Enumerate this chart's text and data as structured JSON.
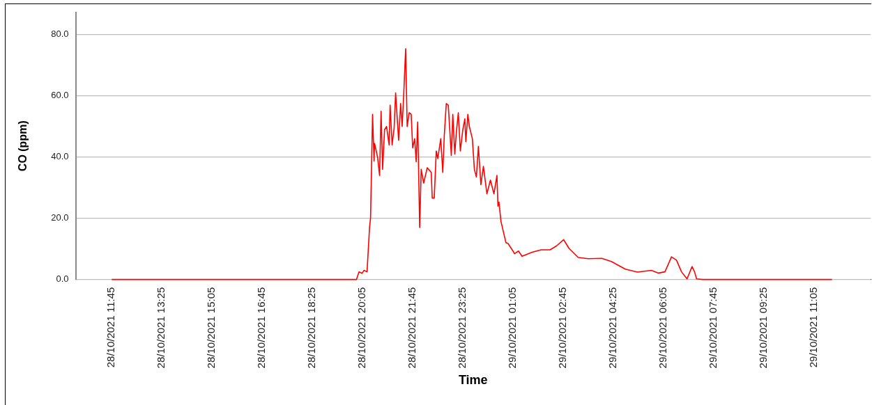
{
  "chart_data": {
    "type": "line",
    "xlabel": "Time",
    "ylabel": "CO (ppm)",
    "x": [
      "2021-10-28T11:45",
      "2021-10-28T19:53",
      "2021-10-28T19:58",
      "2021-10-28T20:04",
      "2021-10-28T20:08",
      "2021-10-28T20:14",
      "2021-10-28T20:19",
      "2021-10-28T20:21",
      "2021-10-28T20:25",
      "2021-10-28T20:28",
      "2021-10-28T20:29",
      "2021-10-28T20:35",
      "2021-10-28T20:39",
      "2021-10-28T20:42",
      "2021-10-28T20:45",
      "2021-10-28T20:49",
      "2021-10-28T20:53",
      "2021-10-28T20:58",
      "2021-10-28T21:00",
      "2021-10-28T21:04",
      "2021-10-28T21:08",
      "2021-10-28T21:11",
      "2021-10-28T21:17",
      "2021-10-28T21:21",
      "2021-10-28T21:24",
      "2021-10-28T21:27",
      "2021-10-28T21:31",
      "2021-10-28T21:34",
      "2021-10-28T21:38",
      "2021-10-28T21:42",
      "2021-10-28T21:45",
      "2021-10-28T21:49",
      "2021-10-28T21:52",
      "2021-10-28T21:55",
      "2021-10-28T21:59",
      "2021-10-28T22:02",
      "2021-10-28T22:07",
      "2021-10-28T22:14",
      "2021-10-28T22:22",
      "2021-10-28T22:24",
      "2021-10-28T22:28",
      "2021-10-28T22:32",
      "2021-10-28T22:35",
      "2021-10-28T22:41",
      "2021-10-28T22:45",
      "2021-10-28T22:48",
      "2021-10-28T22:52",
      "2021-10-28T22:56",
      "2021-10-28T23:02",
      "2021-10-28T23:05",
      "2021-10-28T23:09",
      "2021-10-28T23:12",
      "2021-10-28T23:16",
      "2021-10-28T23:20",
      "2021-10-28T23:25",
      "2021-10-28T23:29",
      "2021-10-28T23:31",
      "2021-10-28T23:35",
      "2021-10-28T23:38",
      "2021-10-28T23:44",
      "2021-10-28T23:48",
      "2021-10-28T23:52",
      "2021-10-28T23:56",
      "2021-10-29T00:01",
      "2021-10-29T00:06",
      "2021-10-29T00:13",
      "2021-10-29T00:20",
      "2021-10-29T00:27",
      "2021-10-29T00:33",
      "2021-10-29T00:35",
      "2021-10-29T00:37",
      "2021-10-29T00:41",
      "2021-10-29T00:51",
      "2021-10-29T00:55",
      "2021-10-29T01:05",
      "2021-10-29T01:08",
      "2021-10-29T01:16",
      "2021-10-29T01:23",
      "2021-10-29T01:43",
      "2021-10-29T02:01",
      "2021-10-29T02:19",
      "2021-10-29T02:32",
      "2021-10-29T02:46",
      "2021-10-29T02:57",
      "2021-10-29T03:15",
      "2021-10-29T03:35",
      "2021-10-29T04:02",
      "2021-10-29T04:21",
      "2021-10-29T04:49",
      "2021-10-29T05:13",
      "2021-10-29T05:41",
      "2021-10-29T05:55",
      "2021-10-29T06:08",
      "2021-10-29T06:21",
      "2021-10-29T06:31",
      "2021-10-29T06:41",
      "2021-10-29T06:52",
      "2021-10-29T07:02",
      "2021-10-29T07:07",
      "2021-10-29T07:11",
      "2021-10-29T07:23",
      "2021-10-29T11:41"
    ],
    "series": [
      {
        "color": "#ff0000",
        "values": [
          0,
          0,
          2.5,
          2,
          3,
          2.5,
          17,
          20,
          54,
          38.7,
          44.5,
          40,
          34,
          55,
          36,
          49,
          50,
          44,
          57,
          44,
          49.5,
          61,
          45.5,
          57.5,
          50,
          60,
          75.4,
          50,
          54.5,
          54,
          43,
          46,
          38.5,
          51.5,
          17,
          36,
          31.5,
          36.5,
          35,
          26.6,
          26.6,
          42,
          39.5,
          46,
          35,
          47,
          57.5,
          57,
          40.5,
          54,
          41,
          48,
          54.5,
          42,
          49,
          52.5,
          45,
          54,
          50,
          46,
          36,
          33.5,
          43.5,
          31,
          37,
          28,
          32.5,
          28,
          34,
          24,
          25.3,
          19,
          12,
          11.8,
          9.3,
          8.4,
          9.3,
          7.6,
          8.9,
          9.7,
          9.7,
          11,
          13,
          10.1,
          7.2,
          6.8,
          6.9,
          5.9,
          3.4,
          2.4,
          3,
          2.1,
          2.5,
          7.4,
          6.3,
          2.5,
          0.2,
          4.2,
          2.5,
          0.2,
          0,
          0
        ]
      }
    ],
    "xlim": [
      "2021-10-28T10:33",
      "2021-10-29T12:58"
    ],
    "xticks": [
      {
        "value": "2021-10-28T11:45",
        "label": "28/10/2021 11:45"
      },
      {
        "value": "2021-10-28T13:25",
        "label": "28/10/2021 13:25"
      },
      {
        "value": "2021-10-28T15:05",
        "label": "28/10/2021 15:05"
      },
      {
        "value": "2021-10-28T16:45",
        "label": "28/10/2021 16:45"
      },
      {
        "value": "2021-10-28T18:25",
        "label": "28/10/2021 18:25"
      },
      {
        "value": "2021-10-28T20:05",
        "label": "28/10/2021 20:05"
      },
      {
        "value": "2021-10-28T21:45",
        "label": "28/10/2021 21:45"
      },
      {
        "value": "2021-10-28T23:25",
        "label": "28/10/2021 23:25"
      },
      {
        "value": "2021-10-29T01:05",
        "label": "29/10/2021 01:05"
      },
      {
        "value": "2021-10-29T02:45",
        "label": "29/10/2021 02:45"
      },
      {
        "value": "2021-10-29T04:25",
        "label": "29/10/2021 04:25"
      },
      {
        "value": "2021-10-29T06:05",
        "label": "29/10/2021 06:05"
      },
      {
        "value": "2021-10-29T07:45",
        "label": "29/10/2021 07:45"
      },
      {
        "value": "2021-10-29T09:25",
        "label": "29/10/2021 09:25"
      },
      {
        "value": "2021-10-29T11:05",
        "label": "29/10/2021 11:05"
      }
    ],
    "ylim": [
      0,
      87.3
    ],
    "yticks": [
      {
        "value": 0,
        "label": "0.0"
      },
      {
        "value": 20,
        "label": "20.0"
      },
      {
        "value": 40,
        "label": "40.0"
      },
      {
        "value": 60,
        "label": "60.0"
      },
      {
        "value": 80,
        "label": "80.0"
      }
    ],
    "grid": "y",
    "marker": "none",
    "line_style": "solid",
    "legend": false
  }
}
